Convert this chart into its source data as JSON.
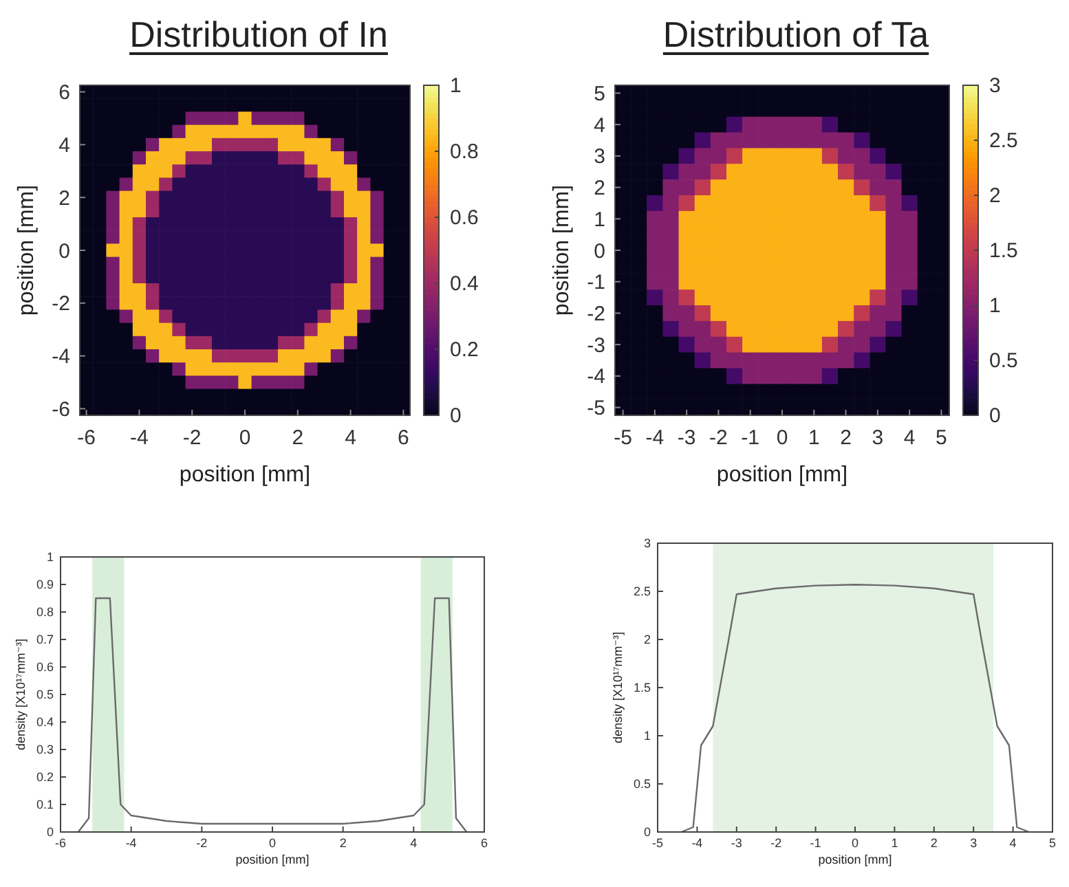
{
  "chart_data": [
    {
      "type": "heatmap",
      "title": "Distribution of In",
      "xlabel": "position [mm]",
      "ylabel": "position [mm]",
      "categories": [
        "-6",
        null,
        null,
        null,
        "-4",
        null,
        null,
        null,
        "-2",
        null,
        null,
        null,
        "0",
        null,
        null,
        null,
        "2",
        null,
        null,
        null,
        "4",
        null,
        null,
        null,
        "6"
      ],
      "y_categories": [
        "6",
        null,
        null,
        null,
        "4",
        null,
        null,
        null,
        "2",
        null,
        null,
        null,
        "0",
        null,
        null,
        null,
        "-2",
        null,
        null,
        null,
        "-4",
        null,
        null,
        null,
        "-6"
      ],
      "clim": [
        0,
        1
      ],
      "cticks": [
        0,
        0.2,
        0.4,
        0.6,
        0.8,
        1
      ],
      "cells": [
        [
          0,
          0,
          0,
          0,
          0,
          0,
          0,
          0,
          0,
          0,
          0,
          0,
          0,
          0,
          0,
          0,
          0,
          0,
          0,
          0,
          0,
          0,
          0,
          0,
          0
        ],
        [
          0,
          0,
          0,
          0,
          0,
          0,
          0,
          0,
          0,
          0,
          0,
          0,
          0,
          0,
          0,
          0,
          0,
          0,
          0,
          0,
          0,
          0,
          0,
          0,
          0
        ],
        [
          0,
          0,
          0,
          0,
          0,
          0,
          0,
          0,
          0.3,
          0.3,
          0.3,
          0.3,
          0.85,
          0.3,
          0.3,
          0.3,
          0.3,
          0,
          0,
          0,
          0,
          0,
          0,
          0,
          0
        ],
        [
          0,
          0,
          0,
          0,
          0,
          0,
          0,
          0.3,
          0.85,
          0.85,
          0.85,
          0.85,
          0.85,
          0.85,
          0.85,
          0.85,
          0.85,
          0.3,
          0,
          0,
          0,
          0,
          0,
          0,
          0
        ],
        [
          0,
          0,
          0,
          0,
          0,
          0.3,
          0.85,
          0.85,
          0.85,
          0.85,
          0.4,
          0.4,
          0.4,
          0.4,
          0.4,
          0.85,
          0.85,
          0.85,
          0.85,
          0.3,
          0,
          0,
          0,
          0,
          0
        ],
        [
          0,
          0,
          0,
          0,
          0.3,
          0.85,
          0.85,
          0.85,
          0.4,
          0.4,
          0.1,
          0.1,
          0.1,
          0.1,
          0.1,
          0.4,
          0.4,
          0.85,
          0.85,
          0.85,
          0.3,
          0,
          0,
          0,
          0
        ],
        [
          0,
          0,
          0,
          0,
          0.85,
          0.85,
          0.85,
          0.4,
          0.1,
          0.1,
          0.1,
          0.1,
          0.1,
          0.1,
          0.1,
          0.1,
          0.1,
          0.4,
          0.85,
          0.85,
          0.85,
          0,
          0,
          0,
          0
        ],
        [
          0,
          0,
          0,
          0.3,
          0.85,
          0.85,
          0.4,
          0.1,
          0.1,
          0.1,
          0.1,
          0.1,
          0.1,
          0.1,
          0.1,
          0.1,
          0.1,
          0.1,
          0.4,
          0.85,
          0.85,
          0.3,
          0,
          0,
          0
        ],
        [
          0,
          0,
          0.3,
          0.85,
          0.85,
          0.4,
          0.1,
          0.1,
          0.1,
          0.1,
          0.1,
          0.1,
          0.1,
          0.1,
          0.1,
          0.1,
          0.1,
          0.1,
          0.1,
          0.4,
          0.85,
          0.85,
          0.3,
          0,
          0
        ],
        [
          0,
          0,
          0.3,
          0.85,
          0.85,
          0.4,
          0.1,
          0.1,
          0.1,
          0.1,
          0.1,
          0.1,
          0.1,
          0.1,
          0.1,
          0.1,
          0.1,
          0.1,
          0.1,
          0.4,
          0.85,
          0.85,
          0.3,
          0,
          0
        ],
        [
          0,
          0,
          0.3,
          0.85,
          0.4,
          0.1,
          0.1,
          0.1,
          0.1,
          0.1,
          0.1,
          0.1,
          0.1,
          0.1,
          0.1,
          0.1,
          0.1,
          0.1,
          0.1,
          0.1,
          0.4,
          0.85,
          0.3,
          0,
          0
        ],
        [
          0,
          0,
          0.3,
          0.85,
          0.4,
          0.1,
          0.1,
          0.1,
          0.1,
          0.1,
          0.1,
          0.1,
          0.1,
          0.1,
          0.1,
          0.1,
          0.1,
          0.1,
          0.1,
          0.1,
          0.4,
          0.85,
          0.3,
          0,
          0
        ],
        [
          0,
          0,
          0.85,
          0.85,
          0.4,
          0.1,
          0.1,
          0.1,
          0.1,
          0.1,
          0.1,
          0.1,
          0.1,
          0.1,
          0.1,
          0.1,
          0.1,
          0.1,
          0.1,
          0.1,
          0.4,
          0.85,
          0.85,
          0,
          0
        ],
        [
          0,
          0,
          0.3,
          0.85,
          0.4,
          0.1,
          0.1,
          0.1,
          0.1,
          0.1,
          0.1,
          0.1,
          0.1,
          0.1,
          0.1,
          0.1,
          0.1,
          0.1,
          0.1,
          0.1,
          0.4,
          0.85,
          0.3,
          0,
          0
        ],
        [
          0,
          0,
          0.3,
          0.85,
          0.4,
          0.1,
          0.1,
          0.1,
          0.1,
          0.1,
          0.1,
          0.1,
          0.1,
          0.1,
          0.1,
          0.1,
          0.1,
          0.1,
          0.1,
          0.1,
          0.4,
          0.85,
          0.3,
          0,
          0
        ],
        [
          0,
          0,
          0.3,
          0.85,
          0.85,
          0.4,
          0.1,
          0.1,
          0.1,
          0.1,
          0.1,
          0.1,
          0.1,
          0.1,
          0.1,
          0.1,
          0.1,
          0.1,
          0.1,
          0.4,
          0.85,
          0.85,
          0.3,
          0,
          0
        ],
        [
          0,
          0,
          0.3,
          0.85,
          0.85,
          0.4,
          0.1,
          0.1,
          0.1,
          0.1,
          0.1,
          0.1,
          0.1,
          0.1,
          0.1,
          0.1,
          0.1,
          0.1,
          0.1,
          0.4,
          0.85,
          0.85,
          0.3,
          0,
          0
        ],
        [
          0,
          0,
          0,
          0.3,
          0.85,
          0.85,
          0.4,
          0.1,
          0.1,
          0.1,
          0.1,
          0.1,
          0.1,
          0.1,
          0.1,
          0.1,
          0.1,
          0.1,
          0.4,
          0.85,
          0.85,
          0.3,
          0,
          0,
          0
        ],
        [
          0,
          0,
          0,
          0,
          0.85,
          0.85,
          0.85,
          0.4,
          0.1,
          0.1,
          0.1,
          0.1,
          0.1,
          0.1,
          0.1,
          0.1,
          0.1,
          0.4,
          0.85,
          0.85,
          0.85,
          0,
          0,
          0,
          0
        ],
        [
          0,
          0,
          0,
          0,
          0.3,
          0.85,
          0.85,
          0.85,
          0.4,
          0.4,
          0.1,
          0.1,
          0.1,
          0.1,
          0.1,
          0.4,
          0.4,
          0.85,
          0.85,
          0.85,
          0.3,
          0,
          0,
          0,
          0
        ],
        [
          0,
          0,
          0,
          0,
          0,
          0.3,
          0.85,
          0.85,
          0.85,
          0.85,
          0.4,
          0.4,
          0.4,
          0.4,
          0.4,
          0.85,
          0.85,
          0.85,
          0.85,
          0.3,
          0,
          0,
          0,
          0,
          0
        ],
        [
          0,
          0,
          0,
          0,
          0,
          0,
          0,
          0.3,
          0.85,
          0.85,
          0.85,
          0.85,
          0.85,
          0.85,
          0.85,
          0.85,
          0.85,
          0.3,
          0,
          0,
          0,
          0,
          0,
          0,
          0
        ],
        [
          0,
          0,
          0,
          0,
          0,
          0,
          0,
          0,
          0.3,
          0.3,
          0.3,
          0.3,
          0.85,
          0.3,
          0.3,
          0.3,
          0.3,
          0,
          0,
          0,
          0,
          0,
          0,
          0,
          0
        ],
        [
          0,
          0,
          0,
          0,
          0,
          0,
          0,
          0,
          0,
          0,
          0,
          0,
          0,
          0,
          0,
          0,
          0,
          0,
          0,
          0,
          0,
          0,
          0,
          0,
          0
        ],
        [
          0,
          0,
          0,
          0,
          0,
          0,
          0,
          0,
          0,
          0,
          0,
          0,
          0,
          0,
          0,
          0,
          0,
          0,
          0,
          0,
          0,
          0,
          0,
          0,
          0
        ]
      ]
    },
    {
      "type": "heatmap",
      "title": "Distribution of Ta",
      "xlabel": "position [mm]",
      "ylabel": "position [mm]",
      "categories": [
        "-5",
        null,
        "-4",
        null,
        "-3",
        null,
        "-2",
        null,
        "-1",
        null,
        "0",
        null,
        "1",
        null,
        "2",
        null,
        "3",
        null,
        "4",
        null,
        "5"
      ],
      "y_categories": [
        "5",
        null,
        "4",
        null,
        "3",
        null,
        "2",
        null,
        "1",
        null,
        "0",
        null,
        "-1",
        null,
        "-2",
        null,
        "-3",
        null,
        "-4",
        null,
        "-5"
      ],
      "clim": [
        0,
        3
      ],
      "cticks": [
        0,
        0.5,
        1,
        1.5,
        2,
        2.5,
        3
      ],
      "cells": [
        [
          0,
          0,
          0,
          0,
          0,
          0,
          0,
          0,
          0,
          0,
          0,
          0,
          0,
          0,
          0,
          0,
          0,
          0,
          0,
          0,
          0
        ],
        [
          0,
          0,
          0,
          0,
          0,
          0,
          0,
          0,
          0,
          0,
          0,
          0,
          0,
          0,
          0,
          0,
          0,
          0,
          0,
          0,
          0
        ],
        [
          0,
          0,
          0,
          0,
          0,
          0,
          0,
          0.5,
          1,
          1,
          1,
          1,
          1,
          0.5,
          0,
          0,
          0,
          0,
          0,
          0,
          0
        ],
        [
          0,
          0,
          0,
          0,
          0,
          0.5,
          1,
          1,
          1,
          1,
          1,
          1,
          1,
          1,
          1,
          0.5,
          0,
          0,
          0,
          0,
          0
        ],
        [
          0,
          0,
          0,
          0,
          0.5,
          1,
          1,
          1.5,
          2.5,
          2.5,
          2.5,
          2.5,
          2.5,
          1.5,
          1,
          1,
          0.5,
          0,
          0,
          0,
          0
        ],
        [
          0,
          0,
          0,
          0.5,
          1,
          1,
          1.5,
          2.5,
          2.5,
          2.5,
          2.5,
          2.5,
          2.5,
          2.5,
          1.5,
          1,
          1,
          0.5,
          0,
          0,
          0
        ],
        [
          0,
          0,
          0,
          1,
          1,
          1.5,
          2.5,
          2.5,
          2.5,
          2.5,
          2.5,
          2.5,
          2.5,
          2.5,
          2.5,
          1.5,
          1,
          1,
          0,
          0,
          0
        ],
        [
          0,
          0,
          0.5,
          1,
          1.5,
          2.5,
          2.5,
          2.5,
          2.5,
          2.5,
          2.5,
          2.5,
          2.5,
          2.5,
          2.5,
          2.5,
          1.5,
          1,
          0.5,
          0,
          0
        ],
        [
          0,
          0,
          1,
          1,
          2.5,
          2.5,
          2.5,
          2.5,
          2.5,
          2.5,
          2.5,
          2.5,
          2.5,
          2.5,
          2.5,
          2.5,
          2.5,
          1,
          1,
          0,
          0
        ],
        [
          0,
          0,
          1,
          1,
          2.5,
          2.5,
          2.5,
          2.5,
          2.5,
          2.5,
          2.5,
          2.5,
          2.5,
          2.5,
          2.5,
          2.5,
          2.5,
          1,
          1,
          0,
          0
        ],
        [
          0,
          0,
          1,
          1,
          2.5,
          2.5,
          2.5,
          2.5,
          2.5,
          2.5,
          2.5,
          2.5,
          2.5,
          2.5,
          2.5,
          2.5,
          2.5,
          1,
          1,
          0,
          0
        ],
        [
          0,
          0,
          1,
          1,
          2.5,
          2.5,
          2.5,
          2.5,
          2.5,
          2.5,
          2.5,
          2.5,
          2.5,
          2.5,
          2.5,
          2.5,
          2.5,
          1,
          1,
          0,
          0
        ],
        [
          0,
          0,
          1,
          1,
          2.5,
          2.5,
          2.5,
          2.5,
          2.5,
          2.5,
          2.5,
          2.5,
          2.5,
          2.5,
          2.5,
          2.5,
          2.5,
          1,
          1,
          0,
          0
        ],
        [
          0,
          0,
          0.5,
          1,
          1.5,
          2.5,
          2.5,
          2.5,
          2.5,
          2.5,
          2.5,
          2.5,
          2.5,
          2.5,
          2.5,
          2.5,
          1.5,
          1,
          0.5,
          0,
          0
        ],
        [
          0,
          0,
          0,
          1,
          1,
          1.5,
          2.5,
          2.5,
          2.5,
          2.5,
          2.5,
          2.5,
          2.5,
          2.5,
          2.5,
          1.5,
          1,
          1,
          0,
          0,
          0
        ],
        [
          0,
          0,
          0,
          0.5,
          1,
          1,
          1.5,
          2.5,
          2.5,
          2.5,
          2.5,
          2.5,
          2.5,
          2.5,
          1.5,
          1,
          1,
          0.5,
          0,
          0,
          0
        ],
        [
          0,
          0,
          0,
          0,
          0.5,
          1,
          1,
          1.5,
          2.5,
          2.5,
          2.5,
          2.5,
          2.5,
          1.5,
          1,
          1,
          0.5,
          0,
          0,
          0,
          0
        ],
        [
          0,
          0,
          0,
          0,
          0,
          0.5,
          1,
          1,
          1,
          1,
          1,
          1,
          1,
          1,
          1,
          0.5,
          0,
          0,
          0,
          0,
          0
        ],
        [
          0,
          0,
          0,
          0,
          0,
          0,
          0,
          0.5,
          1,
          1,
          1,
          1,
          1,
          0.5,
          0,
          0,
          0,
          0,
          0,
          0,
          0
        ],
        [
          0,
          0,
          0,
          0,
          0,
          0,
          0,
          0,
          0,
          0,
          0,
          0,
          0,
          0,
          0,
          0,
          0,
          0,
          0,
          0,
          0
        ],
        [
          0,
          0,
          0,
          0,
          0,
          0,
          0,
          0,
          0,
          0,
          0,
          0,
          0,
          0,
          0,
          0,
          0,
          0,
          0,
          0,
          0
        ]
      ]
    },
    {
      "type": "line",
      "xlabel": "position [mm]",
      "ylabel": "density [X10¹⁷mm⁻³]",
      "xlim": [
        -6,
        6
      ],
      "xticks": [
        -6,
        -4,
        -2,
        0,
        2,
        4,
        6
      ],
      "ylim": [
        0,
        1
      ],
      "yticks": [
        0,
        0.1,
        0.2,
        0.3,
        0.4,
        0.5,
        0.6,
        0.7,
        0.8,
        0.9,
        1
      ],
      "bands": [
        {
          "axis": "x",
          "from": -5.1,
          "to": -4.2,
          "color": "#d9eed9"
        },
        {
          "axis": "x",
          "from": 4.2,
          "to": 5.1,
          "color": "#d9eed9"
        }
      ],
      "series": [
        {
          "color": "#6a6a6a",
          "x": [
            -5.5,
            -5.2,
            -5,
            -4.6,
            -4.3,
            -4,
            -3,
            -2,
            0,
            2,
            3,
            4,
            4.3,
            4.6,
            5,
            5.2,
            5.5
          ],
          "values": [
            0,
            0.05,
            0.85,
            0.85,
            0.1,
            0.06,
            0.04,
            0.03,
            0.03,
            0.03,
            0.04,
            0.06,
            0.1,
            0.85,
            0.85,
            0.05,
            0
          ]
        }
      ]
    },
    {
      "type": "line",
      "xlabel": "position [mm]",
      "ylabel": "density [X10¹⁷mm⁻³]",
      "xlim": [
        -5,
        5
      ],
      "xticks": [
        -5,
        -4,
        -3,
        -2,
        -1,
        0,
        1,
        2,
        3,
        4,
        5
      ],
      "ylim": [
        0,
        3
      ],
      "yticks": [
        0,
        0.5,
        1,
        1.5,
        2,
        2.5,
        3
      ],
      "bands": [
        {
          "axis": "x",
          "from": -3.6,
          "to": 3.5,
          "color": "#e3f2e3"
        }
      ],
      "series": [
        {
          "color": "#6a6a6a",
          "x": [
            -4.4,
            -4.1,
            -3.9,
            -3.6,
            -3.2,
            -3,
            -2,
            -1,
            0,
            1,
            2,
            3,
            3.2,
            3.6,
            3.9,
            4.1,
            4.4
          ],
          "values": [
            0,
            0.05,
            0.9,
            1.1,
            2,
            2.47,
            2.53,
            2.56,
            2.57,
            2.56,
            2.53,
            2.47,
            2,
            1.1,
            0.9,
            0.05,
            0
          ]
        }
      ]
    }
  ]
}
